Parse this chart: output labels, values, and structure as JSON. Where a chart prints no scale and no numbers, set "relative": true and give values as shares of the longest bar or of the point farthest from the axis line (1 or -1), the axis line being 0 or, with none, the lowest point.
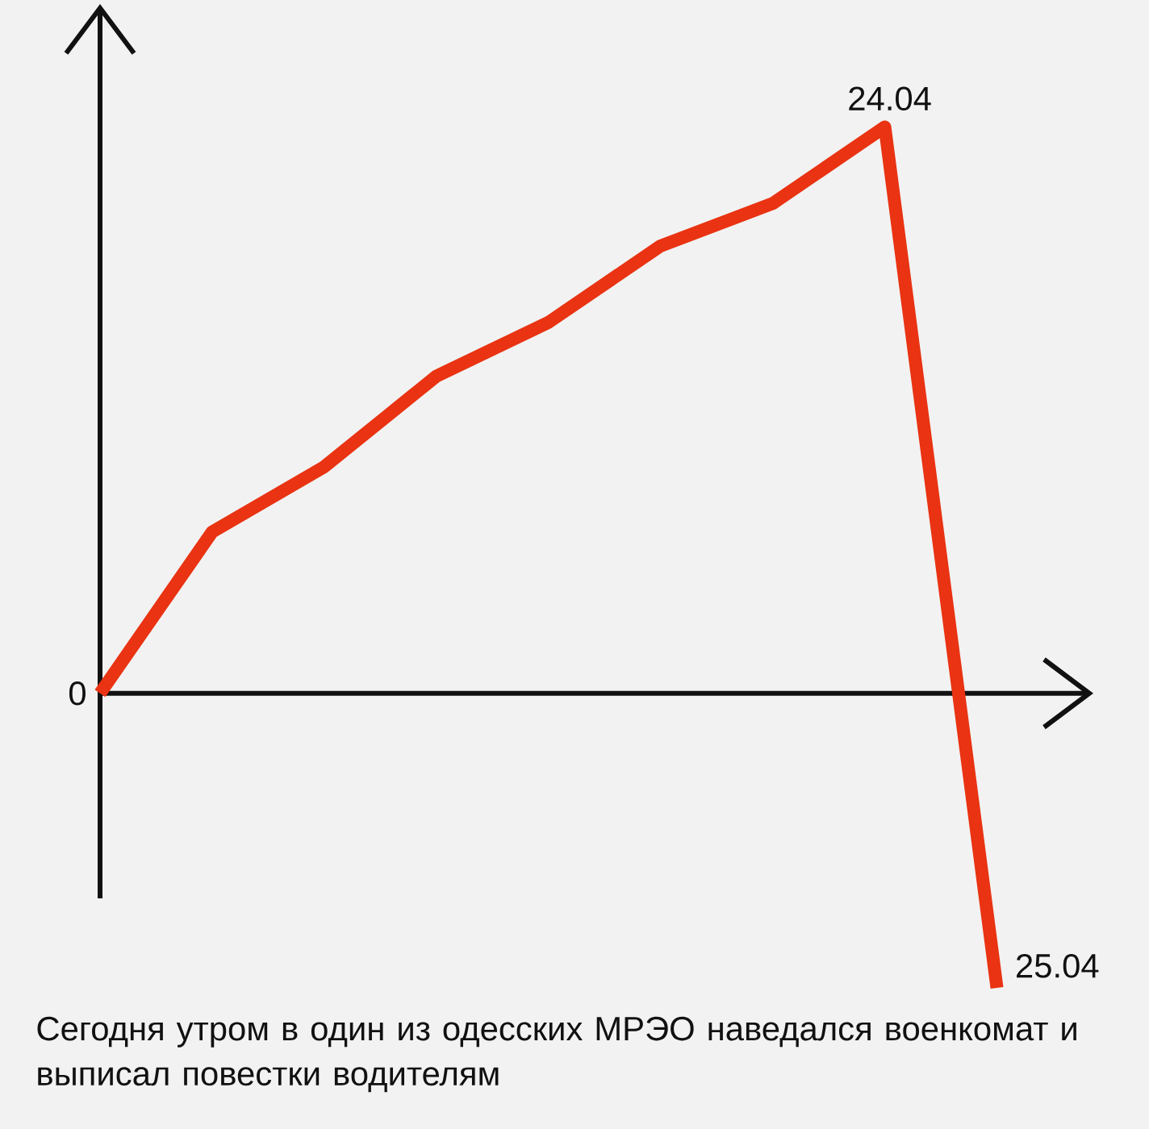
{
  "chart_data": {
    "type": "line",
    "relative": true,
    "categories": [
      null,
      null,
      null,
      null,
      null,
      null,
      null,
      null,
      null
    ],
    "series": [
      {
        "color": "#e93312",
        "values": [
          0,
          0.285,
          0.4,
          0.56,
          0.655,
          0.79,
          0.865,
          1,
          -0.52
        ]
      }
    ],
    "annotations": [
      "0",
      "24.04",
      "25.04",
      "Сегодня утром в один из одесских МРЭО наведался военкомат и выписал повестки водителям"
    ]
  }
}
